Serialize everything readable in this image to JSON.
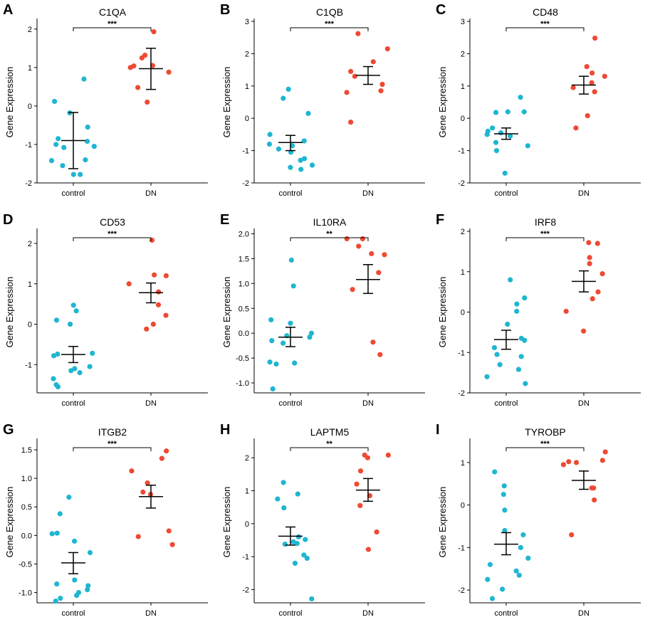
{
  "colors": {
    "control": "#1FB6D1",
    "DN": "#EE4A33"
  },
  "chart_data": [
    {
      "type": "scatter",
      "panel": "A",
      "title": "C1QA",
      "ylabel": "Gene Expression",
      "ylim": [
        -2,
        2.2
      ],
      "yticks": [
        -2,
        -1,
        0,
        1,
        2
      ],
      "ytick_labels": [
        "-2",
        "-1",
        "0",
        "1",
        "2"
      ],
      "categories": [
        "control",
        "DN"
      ],
      "significance": "***",
      "groups": [
        {
          "name": "control",
          "points": [
            0.7,
            0.12,
            -0.18,
            -0.55,
            -0.85,
            -0.92,
            -1.0,
            -1.05,
            -1.08,
            -1.4,
            -1.42,
            -1.55,
            -1.78,
            -1.78
          ],
          "mean": -0.9,
          "err_low": -1.63,
          "err_high": -0.17
        },
        {
          "name": "DN",
          "points": [
            1.93,
            1.32,
            1.25,
            1.05,
            1.04,
            1.0,
            0.88,
            0.48,
            0.1
          ],
          "mean": 0.97,
          "err_low": 0.43,
          "err_high": 1.5
        }
      ]
    },
    {
      "type": "scatter",
      "panel": "B",
      "title": "C1QB",
      "ylabel": "Gene Expression",
      "ylim": [
        -2,
        3
      ],
      "yticks": [
        -2,
        -1,
        0,
        1,
        2,
        3
      ],
      "ytick_labels": [
        "-2",
        "-1",
        "0",
        "1",
        "2",
        "3"
      ],
      "categories": [
        "control",
        "DN"
      ],
      "significance": "***",
      "groups": [
        {
          "name": "control",
          "points": [
            0.9,
            0.62,
            0.15,
            -0.5,
            -0.7,
            -0.8,
            -0.85,
            -0.95,
            -1.05,
            -1.25,
            -1.3,
            -1.45,
            -1.52,
            -1.58
          ],
          "mean": -0.75,
          "err_low": -1.0,
          "err_high": -0.53
        },
        {
          "name": "DN",
          "points": [
            2.62,
            2.15,
            1.75,
            1.45,
            1.3,
            1.05,
            0.85,
            0.8,
            -0.12
          ],
          "mean": 1.33,
          "err_low": 1.05,
          "err_high": 1.6
        }
      ]
    },
    {
      "type": "scatter",
      "panel": "C",
      "title": "CD48",
      "ylabel": "Gene Expression",
      "ylim": [
        -2,
        3
      ],
      "yticks": [
        -2,
        -1,
        0,
        1,
        2,
        3
      ],
      "ytick_labels": [
        "-2",
        "-1",
        "0",
        "1",
        "2",
        "3"
      ],
      "categories": [
        "control",
        "DN"
      ],
      "significance": "***",
      "groups": [
        {
          "name": "control",
          "points": [
            0.65,
            0.2,
            0.2,
            0.18,
            -0.3,
            -0.4,
            -0.45,
            -0.5,
            -0.55,
            -0.75,
            -0.85,
            -1.0,
            -1.7
          ],
          "mean": -0.48,
          "err_low": -0.65,
          "err_high": -0.3
        },
        {
          "name": "DN",
          "points": [
            2.48,
            1.6,
            1.4,
            1.3,
            1.1,
            0.95,
            0.82,
            0.08,
            -0.3
          ],
          "mean": 1.03,
          "err_low": 0.75,
          "err_high": 1.3
        }
      ]
    },
    {
      "type": "scatter",
      "panel": "D",
      "title": "CD53",
      "ylabel": "Gene Expression",
      "ylim": [
        -1.7,
        2.3
      ],
      "yticks": [
        -1,
        0,
        1,
        2
      ],
      "ytick_labels": [
        "-1",
        "0",
        "1",
        "2"
      ],
      "categories": [
        "control",
        "DN"
      ],
      "significance": "***",
      "groups": [
        {
          "name": "control",
          "points": [
            0.47,
            0.33,
            0.1,
            0.0,
            -0.72,
            -0.74,
            -0.78,
            -1.05,
            -1.1,
            -1.15,
            -1.2,
            -1.35,
            -1.5,
            -1.55
          ],
          "mean": -0.75,
          "err_low": -0.95,
          "err_high": -0.55
        },
        {
          "name": "DN",
          "points": [
            2.08,
            1.22,
            1.2,
            1.0,
            0.8,
            0.48,
            0.22,
            0.0,
            -0.12
          ],
          "mean": 0.78,
          "err_low": 0.53,
          "err_high": 1.02
        }
      ]
    },
    {
      "type": "scatter",
      "panel": "E",
      "title": "IL10RA",
      "ylabel": "Gene Expression",
      "ylim": [
        -1.2,
        2.05
      ],
      "yticks": [
        -1.0,
        -0.5,
        0.0,
        0.5,
        1.0,
        1.5,
        2.0
      ],
      "ytick_labels": [
        "-1.0",
        "-0.5",
        "0.0",
        "0.5",
        "1.0",
        "1.5",
        "2.0"
      ],
      "categories": [
        "control",
        "DN"
      ],
      "significance": "**",
      "groups": [
        {
          "name": "control",
          "points": [
            1.47,
            0.95,
            0.27,
            0.2,
            0.0,
            -0.05,
            -0.08,
            -0.15,
            -0.2,
            -0.58,
            -0.6,
            -0.62,
            -1.12
          ],
          "mean": -0.08,
          "err_low": -0.27,
          "err_high": 0.12
        },
        {
          "name": "DN",
          "points": [
            1.9,
            1.9,
            1.75,
            1.6,
            1.58,
            1.22,
            0.88,
            -0.18,
            -0.43
          ],
          "mean": 1.08,
          "err_low": 0.8,
          "err_high": 1.38
        }
      ]
    },
    {
      "type": "scatter",
      "panel": "F",
      "title": "IRF8",
      "ylabel": "Gene Expression",
      "ylim": [
        -2,
        2
      ],
      "yticks": [
        -2,
        -1,
        0,
        1,
        2
      ],
      "ytick_labels": [
        "-2",
        "-1",
        "0",
        "1",
        "2"
      ],
      "categories": [
        "control",
        "DN"
      ],
      "significance": "***",
      "groups": [
        {
          "name": "control",
          "points": [
            0.8,
            0.35,
            0.2,
            0.02,
            -0.3,
            -0.65,
            -0.7,
            -0.88,
            -1.05,
            -1.1,
            -1.3,
            -1.42,
            -1.6,
            -1.77
          ],
          "mean": -0.68,
          "err_low": -0.92,
          "err_high": -0.45
        },
        {
          "name": "DN",
          "points": [
            1.72,
            1.7,
            1.35,
            1.2,
            0.95,
            0.33,
            0.02,
            -0.47,
            0.5
          ],
          "mean": 0.76,
          "err_low": 0.5,
          "err_high": 1.02
        }
      ]
    },
    {
      "type": "scatter",
      "panel": "G",
      "title": "ITGB2",
      "ylabel": "Gene Expression",
      "ylim": [
        -1.18,
        1.65
      ],
      "yticks": [
        -1.0,
        -0.5,
        0.0,
        0.5,
        1.0,
        1.5
      ],
      "ytick_labels": [
        "-1.0",
        "-0.5",
        "0.0",
        "0.5",
        "1.0",
        "1.5"
      ],
      "categories": [
        "control",
        "DN"
      ],
      "significance": "***",
      "groups": [
        {
          "name": "control",
          "points": [
            0.67,
            0.38,
            0.04,
            0.03,
            -0.1,
            -0.3,
            -0.78,
            -0.85,
            -0.88,
            -0.95,
            -1.0,
            -1.05,
            -1.1,
            -1.15
          ],
          "mean": -0.48,
          "err_low": -0.67,
          "err_high": -0.3
        },
        {
          "name": "DN",
          "points": [
            1.48,
            1.35,
            1.13,
            0.92,
            0.76,
            0.72,
            0.08,
            -0.02,
            -0.16
          ],
          "mean": 0.68,
          "err_low": 0.48,
          "err_high": 0.88
        }
      ]
    },
    {
      "type": "scatter",
      "panel": "H",
      "title": "LAPTM5",
      "ylabel": "Gene Expression",
      "ylim": [
        -2.4,
        2.5
      ],
      "yticks": [
        -2,
        -1,
        0,
        1,
        2
      ],
      "ytick_labels": [
        "-2",
        "-1",
        "0",
        "1",
        "2"
      ],
      "categories": [
        "control",
        "DN"
      ],
      "significance": "**",
      "groups": [
        {
          "name": "control",
          "points": [
            1.25,
            0.9,
            0.75,
            0.48,
            -0.4,
            -0.48,
            -0.55,
            -0.6,
            -0.62,
            -0.95,
            -1.05,
            -1.2,
            -2.28
          ],
          "mean": -0.38,
          "err_low": -0.65,
          "err_high": -0.1
        },
        {
          "name": "DN",
          "points": [
            2.08,
            2.08,
            2.0,
            1.2,
            0.85,
            0.55,
            -0.25,
            -0.78,
            1.6
          ],
          "mean": 1.02,
          "err_low": 0.68,
          "err_high": 1.37
        }
      ]
    },
    {
      "type": "scatter",
      "panel": "I",
      "title": "TYROBP",
      "ylabel": "Gene Expression",
      "ylim": [
        -2.3,
        1.5
      ],
      "yticks": [
        -2,
        -1,
        0,
        1
      ],
      "ytick_labels": [
        "-2",
        "-1",
        "0",
        "1"
      ],
      "categories": [
        "control",
        "DN"
      ],
      "significance": "***",
      "groups": [
        {
          "name": "control",
          "points": [
            0.78,
            0.45,
            0.25,
            -0.12,
            -0.6,
            -0.7,
            -1.0,
            -1.25,
            -1.4,
            -1.55,
            -1.65,
            -1.75,
            -1.98,
            -2.2
          ],
          "mean": -0.92,
          "err_low": -1.17,
          "err_high": -0.65
        },
        {
          "name": "DN",
          "points": [
            1.25,
            1.05,
            1.02,
            1.0,
            0.95,
            0.4,
            0.4,
            0.12,
            -0.7
          ],
          "mean": 0.58,
          "err_low": 0.37,
          "err_high": 0.8
        }
      ]
    }
  ]
}
